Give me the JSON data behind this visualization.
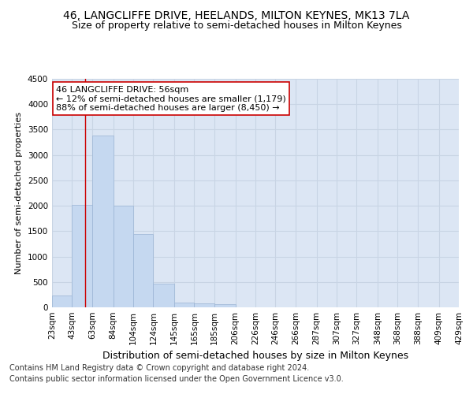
{
  "title_line1": "46, LANGCLIFFE DRIVE, HEELANDS, MILTON KEYNES, MK13 7LA",
  "title_line2": "Size of property relative to semi-detached houses in Milton Keynes",
  "xlabel": "Distribution of semi-detached houses by size in Milton Keynes",
  "ylabel": "Number of semi-detached properties",
  "footnote1": "Contains HM Land Registry data © Crown copyright and database right 2024.",
  "footnote2": "Contains public sector information licensed under the Open Government Licence v3.0.",
  "annotation_title": "46 LANGCLIFFE DRIVE: 56sqm",
  "annotation_line1": "← 12% of semi-detached houses are smaller (1,179)",
  "annotation_line2": "88% of semi-detached houses are larger (8,450) →",
  "bin_edges": [
    23,
    43,
    63,
    84,
    104,
    124,
    145,
    165,
    185,
    206,
    226,
    246,
    266,
    287,
    307,
    327,
    348,
    368,
    388,
    409,
    429
  ],
  "bar_heights": [
    230,
    2020,
    3380,
    2000,
    1450,
    470,
    100,
    70,
    60,
    0,
    0,
    0,
    0,
    0,
    0,
    0,
    0,
    0,
    0,
    0
  ],
  "bar_color": "#c5d8f0",
  "bar_edge_color": "#9ab4d4",
  "vline_color": "#cc0000",
  "vline_x": 56,
  "ylim": [
    0,
    4500
  ],
  "yticks": [
    0,
    500,
    1000,
    1500,
    2000,
    2500,
    3000,
    3500,
    4000,
    4500
  ],
  "grid_color": "#c8d4e4",
  "background_color": "#dce6f4",
  "annotation_box_facecolor": "#ffffff",
  "annotation_box_edgecolor": "#cc0000",
  "title1_fontsize": 10,
  "title2_fontsize": 9,
  "xlabel_fontsize": 9,
  "ylabel_fontsize": 8,
  "tick_fontsize": 7.5,
  "annotation_fontsize": 8,
  "footnote_fontsize": 7
}
